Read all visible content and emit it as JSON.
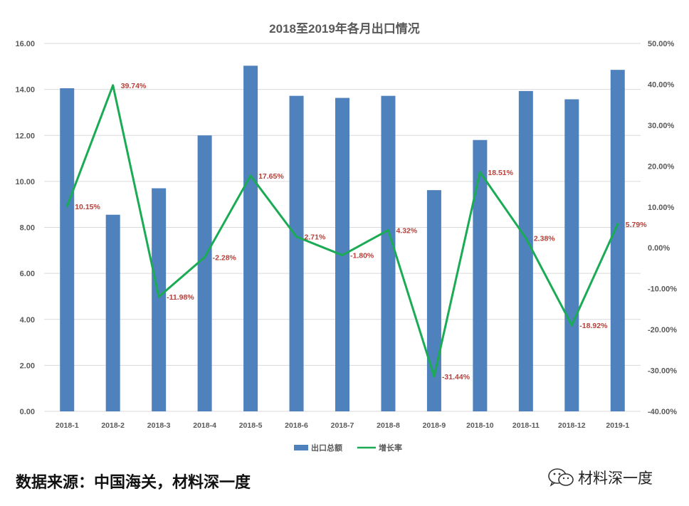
{
  "chart_data": {
    "type": "bar+line",
    "title": "2018至2019年各月出口情况",
    "categories": [
      "2018-1",
      "2018-2",
      "2018-3",
      "2018-4",
      "2018-5",
      "2018-6",
      "2018-7",
      "2018-8",
      "2018-9",
      "2018-10",
      "2018-11",
      "2018-12",
      "2019-1"
    ],
    "series": [
      {
        "name": "出口总额",
        "type": "bar",
        "axis": "left",
        "color": "#4f81bd",
        "values": [
          14.05,
          8.55,
          9.7,
          12.0,
          15.03,
          13.72,
          13.63,
          13.72,
          9.62,
          11.8,
          13.93,
          13.57,
          14.85
        ]
      },
      {
        "name": "增长率",
        "type": "line",
        "axis": "right",
        "color": "#1aab54",
        "values": [
          10.15,
          39.74,
          -11.98,
          -2.28,
          17.65,
          2.71,
          -1.8,
          4.32,
          -31.44,
          18.51,
          2.38,
          -18.92,
          5.79
        ],
        "labels": [
          "10.15%",
          "39.74%",
          "-11.98%",
          "-2.28%",
          "17.65%",
          "2.71%",
          "-1.80%",
          "4.32%",
          "-31.44%",
          "18.51%",
          "2.38%",
          "-18.92%",
          "5.79%"
        ]
      }
    ],
    "y_left": {
      "range": [
        0,
        16
      ],
      "ticks": [
        "0.00",
        "2.00",
        "4.00",
        "6.00",
        "8.00",
        "10.00",
        "12.00",
        "14.00",
        "16.00"
      ]
    },
    "y_right": {
      "range": [
        -40,
        50
      ],
      "ticks": [
        "-40.00%",
        "-30.00%",
        "-20.00%",
        "-10.00%",
        "0.00%",
        "10.00%",
        "20.00%",
        "30.00%",
        "40.00%",
        "50.00%"
      ]
    },
    "grid": true,
    "legend_position": "bottom"
  },
  "footer": {
    "source": "数据来源：中国海关，材料深一度",
    "brand": "材料深一度",
    "brand_icon": "wechat-icon"
  }
}
